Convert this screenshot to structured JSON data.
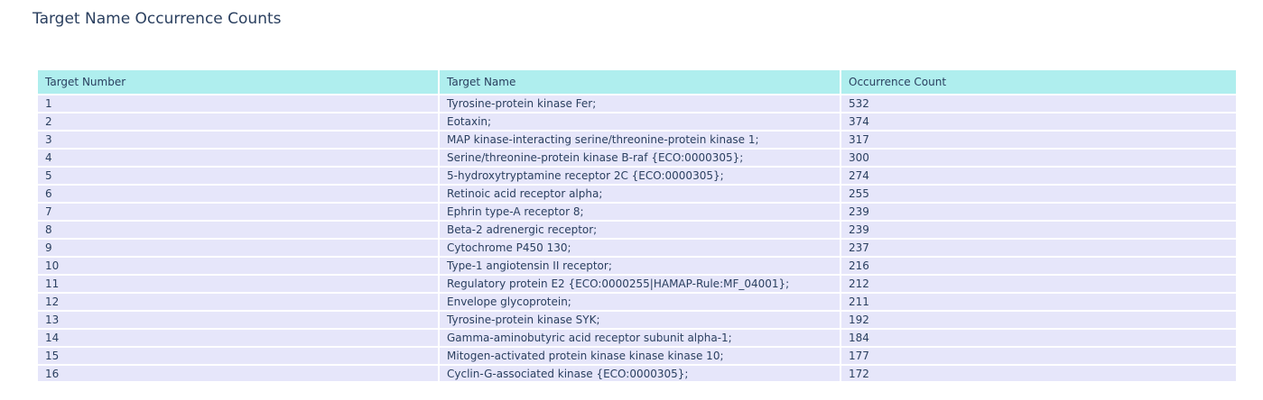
{
  "title": "Target Name Occurrence Counts",
  "chart_data": {
    "type": "table",
    "title": "Target Name Occurrence Counts",
    "columns": [
      "Target Number",
      "Target Name",
      "Occurrence Count"
    ],
    "rows": [
      [
        "1",
        "Tyrosine-protein kinase Fer;",
        "532"
      ],
      [
        "2",
        "Eotaxin;",
        "374"
      ],
      [
        "3",
        "MAP kinase-interacting serine/threonine-protein kinase 1;",
        "317"
      ],
      [
        "4",
        "Serine/threonine-protein kinase B-raf {ECO:0000305};",
        "300"
      ],
      [
        "5",
        "5-hydroxytryptamine receptor 2C {ECO:0000305};",
        "274"
      ],
      [
        "6",
        "Retinoic acid receptor alpha;",
        "255"
      ],
      [
        "7",
        "Ephrin type-A receptor 8;",
        "239"
      ],
      [
        "8",
        "Beta-2 adrenergic receptor;",
        "239"
      ],
      [
        "9",
        "Cytochrome P450 130;",
        "237"
      ],
      [
        "10",
        "Type-1 angiotensin II receptor;",
        "216"
      ],
      [
        "11",
        "Regulatory protein E2 {ECO:0000255|HAMAP-Rule:MF_04001};",
        "212"
      ],
      [
        "12",
        "Envelope glycoprotein;",
        "211"
      ],
      [
        "13",
        "Tyrosine-protein kinase SYK;",
        "192"
      ],
      [
        "14",
        "Gamma-aminobutyric acid receptor subunit alpha-1;",
        "184"
      ],
      [
        "15",
        "Mitogen-activated protein kinase kinase kinase 10;",
        "177"
      ],
      [
        "16",
        "Cyclin-G-associated kinase {ECO:0000305};",
        "172"
      ]
    ],
    "colors": {
      "header_fill": "#afeeee",
      "cell_fill": "#e6e6fa",
      "text": "#2a3f5f"
    }
  }
}
